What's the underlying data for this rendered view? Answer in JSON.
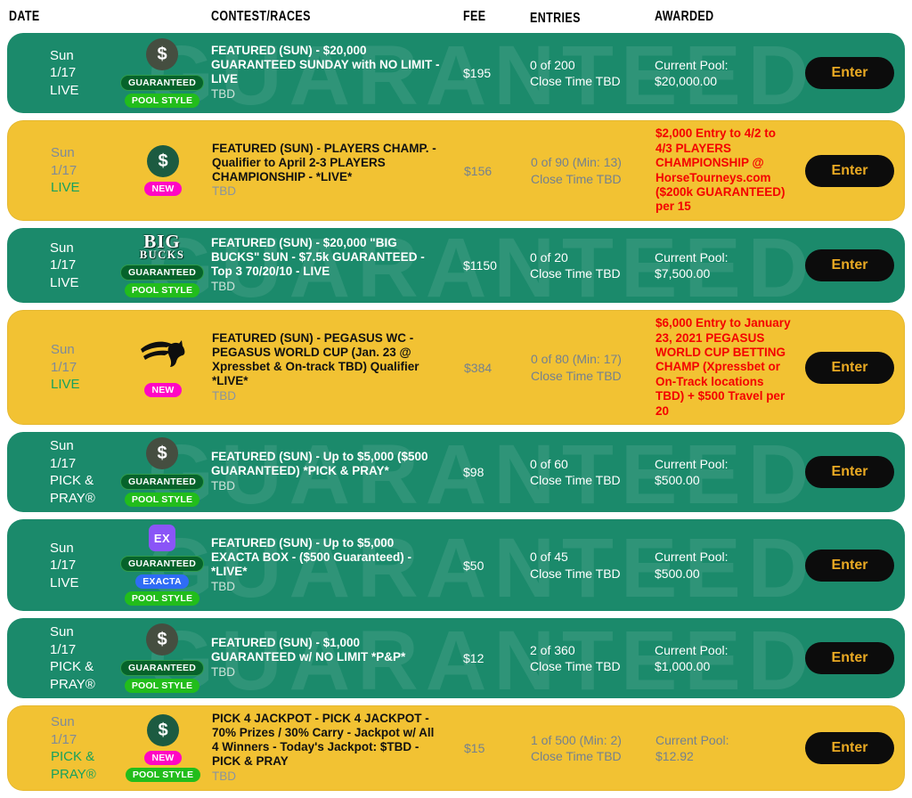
{
  "header": {
    "columns": [
      "DATE",
      "CONTEST/RACES",
      "FEE",
      "ENTRIES",
      "AWARDED"
    ]
  },
  "icons": {
    "dollar": "$",
    "ex": "EX",
    "bigbucks": [
      "BIG",
      "BUCKS"
    ]
  },
  "colors": {
    "green_row": "#1b8a6b",
    "yellow_row": "#f2c233",
    "prize_red": "#f40000",
    "enter_gold": "#eaaa23",
    "badge_guaranteed": "#06632b",
    "badge_pool_style": "#22bd1b",
    "badge_exacta": "#2f6cf5",
    "badge_new": "#ff06c4"
  },
  "rows": [
    {
      "theme": "green",
      "date": {
        "line1": "Sun",
        "line2": "1/17",
        "type": "LIVE"
      },
      "icon": "dollar",
      "badges": [
        {
          "kind": "guaranteed",
          "label": "GUARANTEED"
        },
        {
          "kind": "pool",
          "label": "POOL STYLE"
        }
      ],
      "title": "FEATURED (SUN) - $20,000 GUARANTEED SUNDAY with NO LIMIT - LIVE",
      "races": "TBD",
      "fee": "$195",
      "entries": "0 of 200",
      "close": "Close Time TBD",
      "awarded": {
        "style": "pool",
        "label": "Current Pool:",
        "value": "$20,000.00"
      },
      "enter": "Enter",
      "watermark": "GUARANTEED"
    },
    {
      "theme": "yellow",
      "date": {
        "line1": "Sun",
        "line2": "1/17",
        "type": "LIVE"
      },
      "icon": "dollar",
      "badges": [
        {
          "kind": "new",
          "label": "NEW"
        }
      ],
      "title": "FEATURED (SUN) - PLAYERS CHAMP. - Qualifier to April 2-3 PLAYERS CHAMPIONSHIP - *LIVE*",
      "races": "TBD",
      "fee": "$156",
      "entries": "0 of 90 (Min: 13)",
      "close": "Close Time TBD",
      "awarded": {
        "style": "prize",
        "text": "$2,000 Entry to 4/2 to 4/3 PLAYERS CHAMPIONSHIP @ HorseTourneys.com ($200k GUARANTEED) per 15"
      },
      "enter": "Enter",
      "watermark": ""
    },
    {
      "theme": "green",
      "date": {
        "line1": "Sun",
        "line2": "1/17",
        "type": "LIVE"
      },
      "icon": "bigbucks",
      "badges": [
        {
          "kind": "guaranteed",
          "label": "GUARANTEED"
        },
        {
          "kind": "pool",
          "label": "POOL STYLE"
        }
      ],
      "title": "FEATURED (SUN) - $20,000 \"BIG BUCKS\" SUN - $7.5k GUARANTEED - Top 3 70/20/10 - LIVE",
      "races": "TBD",
      "fee": "$1150",
      "entries": "0 of 20",
      "close": "Close Time TBD",
      "awarded": {
        "style": "pool",
        "label": "Current Pool:",
        "value": "$7,500.00"
      },
      "enter": "Enter",
      "watermark": "GUARANTEED"
    },
    {
      "theme": "yellow",
      "date": {
        "line1": "Sun",
        "line2": "1/17",
        "type": "LIVE"
      },
      "icon": "pegasus",
      "badges": [
        {
          "kind": "new",
          "label": "NEW"
        }
      ],
      "title": "FEATURED (SUN) - PEGASUS WC - PEGASUS WORLD CUP (Jan. 23 @ Xpressbet & On-track TBD) Qualifier *LIVE*",
      "races": "TBD",
      "fee": "$384",
      "entries": "0 of 80 (Min: 17)",
      "close": "Close Time TBD",
      "awarded": {
        "style": "prize",
        "text": "$6,000 Entry to January 23, 2021 PEGASUS WORLD CUP BETTING CHAMP (Xpressbet or On-Track locations TBD) + $500 Travel per 20"
      },
      "enter": "Enter",
      "watermark": ""
    },
    {
      "theme": "green",
      "date": {
        "line1": "Sun",
        "line2": "1/17",
        "type": "PICK & PRAY®"
      },
      "icon": "dollar",
      "badges": [
        {
          "kind": "guaranteed",
          "label": "GUARANTEED"
        },
        {
          "kind": "pool",
          "label": "POOL STYLE"
        }
      ],
      "title": "FEATURED (SUN) - Up to $5,000 ($500 GUARANTEED) *PICK & PRAY*",
      "races": "TBD",
      "fee": "$98",
      "entries": "0 of 60",
      "close": "Close Time TBD",
      "awarded": {
        "style": "pool",
        "label": "Current Pool:",
        "value": "$500.00"
      },
      "enter": "Enter",
      "watermark": "GUARANTEED"
    },
    {
      "theme": "green",
      "date": {
        "line1": "Sun",
        "line2": "1/17",
        "type": "LIVE"
      },
      "icon": "ex",
      "badges": [
        {
          "kind": "guaranteed",
          "label": "GUARANTEED"
        },
        {
          "kind": "exacta",
          "label": "EXACTA"
        },
        {
          "kind": "pool",
          "label": "POOL STYLE"
        }
      ],
      "title": "FEATURED (SUN) - Up to $5,000 EXACTA BOX - ($500 Guaranteed) - *LIVE*",
      "races": "TBD",
      "fee": "$50",
      "entries": "0 of 45",
      "close": "Close Time TBD",
      "awarded": {
        "style": "pool",
        "label": "Current Pool:",
        "value": "$500.00"
      },
      "enter": "Enter",
      "watermark": "GUARANTEED"
    },
    {
      "theme": "green",
      "date": {
        "line1": "Sun",
        "line2": "1/17",
        "type": "PICK & PRAY®"
      },
      "icon": "dollar",
      "badges": [
        {
          "kind": "guaranteed",
          "label": "GUARANTEED"
        },
        {
          "kind": "pool",
          "label": "POOL STYLE"
        }
      ],
      "title": "FEATURED (SUN) - $1,000 GUARANTEED w/ NO LIMIT *P&P*",
      "races": "TBD",
      "fee": "$12",
      "entries": "2 of 360",
      "close": "Close Time TBD",
      "awarded": {
        "style": "pool",
        "label": "Current Pool:",
        "value": "$1,000.00"
      },
      "enter": "Enter",
      "watermark": "GUARANTEED"
    },
    {
      "theme": "yellow",
      "date": {
        "line1": "Sun",
        "line2": "1/17",
        "type": "PICK & PRAY®"
      },
      "icon": "dollar",
      "badges": [
        {
          "kind": "new",
          "label": "NEW"
        },
        {
          "kind": "pool",
          "label": "POOL STYLE"
        }
      ],
      "title": "PICK 4 JACKPOT - PICK 4 JACKPOT - 70% Prizes / 30% Carry - Jackpot w/ All 4 Winners - Today's Jackpot: $TBD - PICK & PRAY",
      "races": "TBD",
      "fee": "$15",
      "entries": "1 of 500 (Min: 2)",
      "close": "Close Time TBD",
      "awarded": {
        "style": "pool",
        "label": "Current Pool:",
        "value": "$12.92"
      },
      "enter": "Enter",
      "watermark": ""
    }
  ]
}
